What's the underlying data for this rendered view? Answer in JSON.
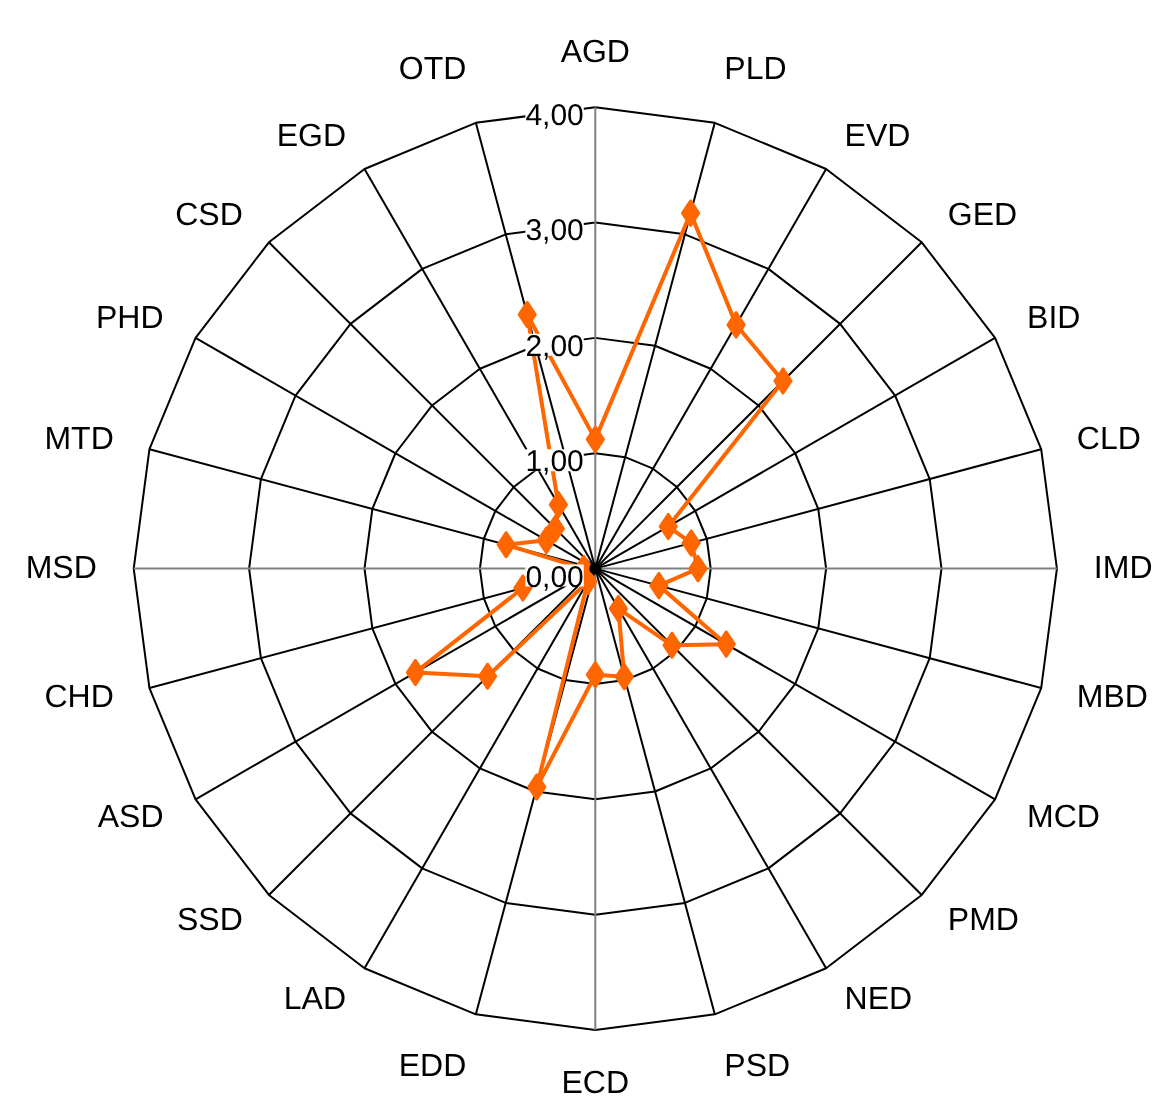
{
  "chart_data": {
    "type": "radar",
    "categories": [
      "AGD",
      "PLD",
      "EVD",
      "GED",
      "BID",
      "CLD",
      "IMD",
      "MBD",
      "MCD",
      "PMD",
      "NED",
      "PSD",
      "ECD",
      "EDD",
      "LAD",
      "SSD",
      "ASD",
      "CHD",
      "MSD",
      "MTD",
      "PHD",
      "CSD",
      "EGD",
      "OTD"
    ],
    "series": [
      {
        "color": "#ff6600",
        "values": [
          1.12,
          3.19,
          2.44,
          2.3,
          0.73,
          0.86,
          0.89,
          0.57,
          1.31,
          0.94,
          0.4,
          0.97,
          0.92,
          1.96,
          0.13,
          1.32,
          1.8,
          0.65,
          0.1,
          0.8,
          0.49,
          0.49,
          0.64,
          2.28
        ]
      }
    ],
    "ylim": [
      0,
      4
    ],
    "yticks": [
      {
        "value": 0,
        "label": "0,00"
      },
      {
        "value": 1,
        "label": "1,00"
      },
      {
        "value": 2,
        "label": "2,00"
      },
      {
        "value": 3,
        "label": "3,00"
      },
      {
        "value": 4,
        "label": "4,00"
      }
    ],
    "marker": "diamond",
    "line_style": "solid",
    "grid": true
  }
}
